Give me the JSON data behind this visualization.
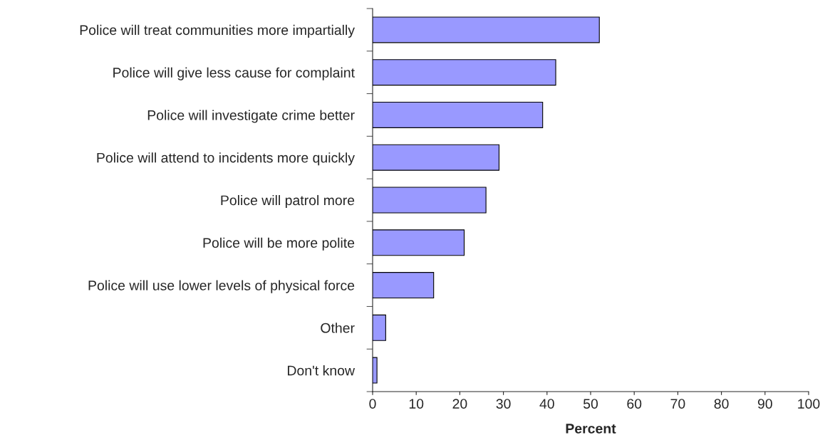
{
  "chart_data": {
    "type": "bar",
    "orientation": "horizontal",
    "xlabel": "Percent",
    "categories": [
      "Police will treat communities more impartially",
      "Police will give less cause for complaint",
      "Police will investigate crime better",
      "Police will attend to incidents more quickly",
      "Police will patrol more",
      "Police will be more polite",
      "Police will use lower levels of physical force",
      "Other",
      "Don't know"
    ],
    "values": [
      52,
      42,
      39,
      29,
      26,
      21,
      14,
      3,
      1
    ],
    "color": "#9999ff",
    "xlim": [
      0,
      100
    ],
    "xticks": [
      0,
      10,
      20,
      30,
      40,
      50,
      60,
      70,
      80,
      90,
      100
    ],
    "grid": false,
    "legend": false
  }
}
